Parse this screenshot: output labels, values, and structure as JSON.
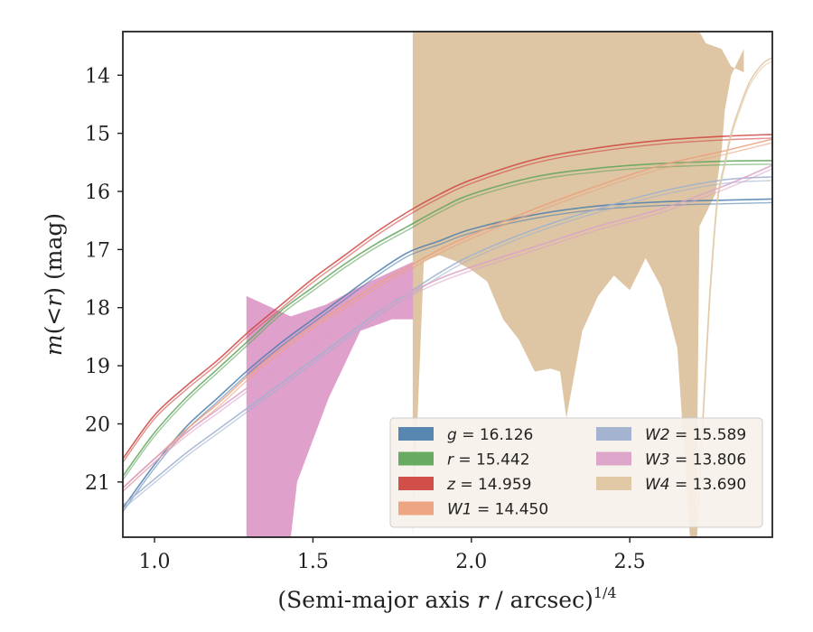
{
  "chart_data": {
    "type": "line",
    "xlabel": "(Semi-major axis r / arcsec)^1/4",
    "xlabel_parts": {
      "pre": "(Semi-major axis ",
      "var": "r",
      "post": " / arcsec)",
      "sup": "1/4"
    },
    "ylabel": "m(<r) (mag)",
    "ylabel_parts": {
      "m": "m",
      "open": "(",
      "lt": "<",
      "r": "r",
      "close": ")",
      "unit": " (mag)"
    },
    "xlim": [
      0.9,
      2.95
    ],
    "ylim": [
      21.95,
      13.25
    ],
    "y_inverted": true,
    "xticks": [
      1.0,
      1.5,
      2.0,
      2.5
    ],
    "xtick_labels": [
      "1.0",
      "1.5",
      "2.0",
      "2.5"
    ],
    "yticks": [
      14,
      15,
      16,
      17,
      18,
      19,
      20,
      21
    ],
    "ytick_labels": [
      "14",
      "15",
      "16",
      "17",
      "18",
      "19",
      "20",
      "21"
    ],
    "grid": false,
    "legend_position": "lower-right",
    "series": [
      {
        "name": "g = 16.126",
        "var": "g",
        "value": "16.126",
        "color": "#4e7fae",
        "x": [
          0.9,
          1.0,
          1.1,
          1.2,
          1.3,
          1.4,
          1.5,
          1.6,
          1.7,
          1.8,
          1.9,
          2.0,
          2.2,
          2.4,
          2.6,
          2.8,
          2.95
        ],
        "y": [
          21.45,
          20.7,
          20.05,
          19.55,
          19.05,
          18.6,
          18.2,
          17.8,
          17.4,
          17.05,
          16.85,
          16.65,
          16.4,
          16.25,
          16.18,
          16.15,
          16.13
        ]
      },
      {
        "name": "r = 15.442",
        "var": "r",
        "value": "15.442",
        "color": "#5fa55a",
        "x": [
          0.9,
          1.0,
          1.1,
          1.2,
          1.3,
          1.4,
          1.5,
          1.6,
          1.7,
          1.8,
          1.9,
          2.0,
          2.2,
          2.4,
          2.6,
          2.8,
          2.95
        ],
        "y": [
          20.9,
          20.15,
          19.55,
          19.05,
          18.55,
          18.05,
          17.65,
          17.25,
          16.9,
          16.6,
          16.3,
          16.05,
          15.75,
          15.6,
          15.52,
          15.48,
          15.47
        ]
      },
      {
        "name": "z = 14.959",
        "var": "z",
        "value": "14.959",
        "color": "#d0453f",
        "x": [
          0.9,
          1.0,
          1.1,
          1.2,
          1.3,
          1.4,
          1.5,
          1.6,
          1.7,
          1.8,
          1.9,
          2.0,
          2.2,
          2.4,
          2.6,
          2.8,
          2.95
        ],
        "y": [
          20.6,
          19.85,
          19.35,
          18.9,
          18.4,
          17.95,
          17.5,
          17.1,
          16.7,
          16.35,
          16.05,
          15.8,
          15.45,
          15.25,
          15.12,
          15.05,
          15.02
        ]
      },
      {
        "name": "W1 = 14.450",
        "var": "W1",
        "value": "14.450",
        "color": "#eca07e",
        "x": [
          0.9,
          1.0,
          1.1,
          1.2,
          1.3,
          1.4,
          1.5,
          1.6,
          1.7,
          1.8,
          1.9,
          2.0,
          2.2,
          2.4,
          2.6,
          2.8,
          2.95
        ],
        "y": [
          21.1,
          20.6,
          20.1,
          19.65,
          19.15,
          18.7,
          18.3,
          17.95,
          17.6,
          17.3,
          17.0,
          16.75,
          16.3,
          15.9,
          15.55,
          15.3,
          15.1
        ]
      },
      {
        "name": "W2 = 15.589",
        "var": "W2",
        "value": "15.589",
        "color": "#9fb0cf",
        "x": [
          0.9,
          1.0,
          1.1,
          1.2,
          1.3,
          1.4,
          1.5,
          1.6,
          1.7,
          1.8,
          1.9,
          2.0,
          2.2,
          2.4,
          2.6,
          2.8,
          2.95
        ],
        "y": [
          21.4,
          20.95,
          20.5,
          20.1,
          19.7,
          19.3,
          18.9,
          18.5,
          18.1,
          17.75,
          17.4,
          17.1,
          16.65,
          16.3,
          16.0,
          15.8,
          15.75
        ]
      },
      {
        "name": "W3 = 13.806",
        "var": "W3",
        "value": "13.806",
        "color": "#dca1c8",
        "x": [
          0.9,
          1.0,
          1.1,
          1.2,
          1.3,
          1.4,
          1.5,
          1.6,
          1.7,
          1.8,
          1.9,
          2.0,
          2.2,
          2.4,
          2.6,
          2.8,
          2.95
        ],
        "y": [
          21.1,
          20.6,
          20.15,
          19.75,
          19.35,
          18.95,
          18.6,
          18.3,
          18.0,
          17.75,
          17.5,
          17.3,
          16.95,
          16.6,
          16.3,
          15.9,
          15.55
        ]
      },
      {
        "name": "W4 = 13.690",
        "var": "W4",
        "value": "13.690",
        "color": "#dfc6a2",
        "x": [
          2.71,
          2.72,
          2.73,
          2.74,
          2.75,
          2.76,
          2.77,
          2.78,
          2.8,
          2.82,
          2.85,
          2.88,
          2.92,
          2.95
        ],
        "y": [
          21.95,
          21.0,
          20.0,
          19.0,
          18.0,
          17.2,
          16.5,
          16.0,
          15.5,
          15.0,
          14.5,
          14.1,
          13.8,
          13.7
        ]
      }
    ],
    "bands": [
      {
        "series": "W3",
        "color": "#d98fc3",
        "opacity": 0.85,
        "x": [
          1.29,
          1.29,
          1.43,
          1.54,
          1.68,
          1.82,
          1.82,
          1.75,
          1.65,
          1.55,
          1.45,
          1.43,
          1.29
        ],
        "y": [
          21.95,
          17.8,
          18.15,
          17.95,
          17.55,
          17.2,
          18.2,
          18.2,
          18.4,
          19.55,
          21.0,
          21.95,
          21.95
        ]
      },
      {
        "series": "W4",
        "color": "#dcc39f",
        "opacity": 0.95,
        "x": [
          1.815,
          1.815,
          2.72,
          2.74,
          2.79,
          2.82,
          2.86,
          2.86,
          2.82,
          2.8,
          2.79,
          2.77,
          2.72,
          2.71,
          2.69,
          2.65,
          2.6,
          2.55,
          2.5,
          2.45,
          2.4,
          2.35,
          2.3,
          2.28,
          2.25,
          2.2,
          2.15,
          2.1,
          2.05,
          2.0,
          1.95,
          1.9,
          1.85,
          1.815
        ],
        "y": [
          21.95,
          13.25,
          13.25,
          13.45,
          13.55,
          13.85,
          13.95,
          13.55,
          14.0,
          14.6,
          15.3,
          16.05,
          16.6,
          21.95,
          21.95,
          18.7,
          17.65,
          17.15,
          17.7,
          17.45,
          17.8,
          18.4,
          19.9,
          19.1,
          19.05,
          19.1,
          18.55,
          18.2,
          17.55,
          17.35,
          17.2,
          17.1,
          17.2,
          21.95
        ]
      }
    ]
  }
}
